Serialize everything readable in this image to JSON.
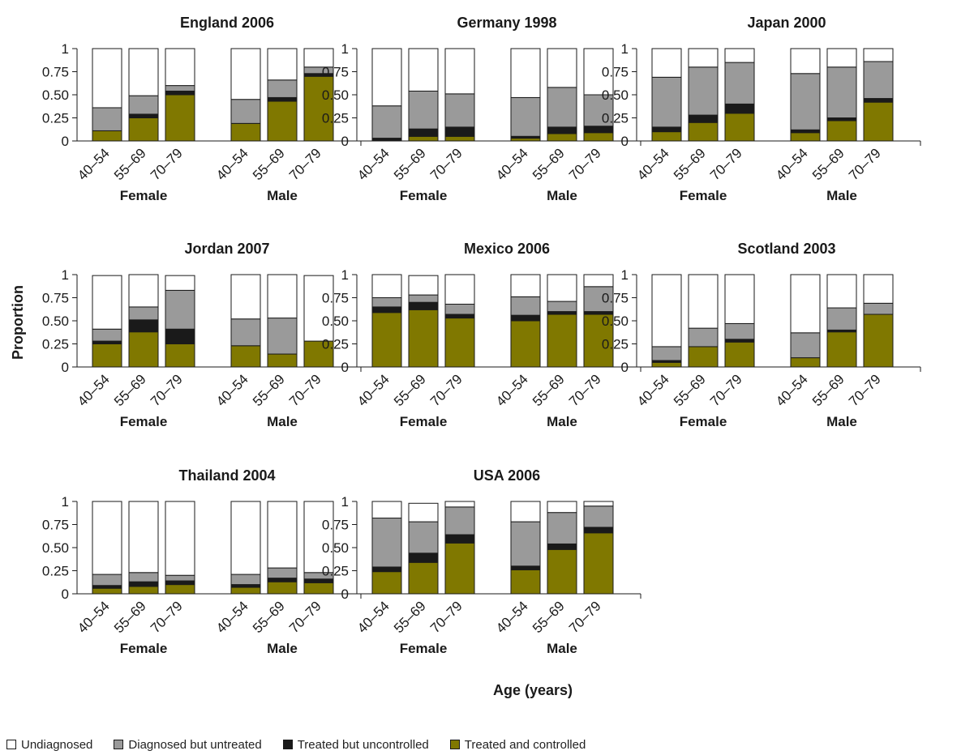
{
  "figure": {
    "y_axis_label": "Proportion",
    "x_axis_label": "Age (years)"
  },
  "legend": [
    {
      "label": "Undiagnosed",
      "color": "#ffffff"
    },
    {
      "label": "Diagnosed but untreated",
      "color": "#9a9a9a"
    },
    {
      "label": "Treated but uncontrolled",
      "color": "#1a1a1a"
    },
    {
      "label": "Treated and controlled",
      "color": "#807800"
    }
  ],
  "chart_data": [
    {
      "type": "bar",
      "stacked": true,
      "title": "England 2006",
      "groups": [
        "Female",
        "Male"
      ],
      "categories": [
        "40–54",
        "55–69",
        "70–79"
      ],
      "ylim": [
        0,
        1
      ],
      "yticks": [
        "0",
        "0.25",
        "0.50",
        "0.75",
        "1"
      ],
      "series": [
        {
          "name": "Treated and controlled",
          "values": [
            [
              0.11,
              0.25,
              0.5
            ],
            [
              0.19,
              0.43,
              0.7
            ]
          ]
        },
        {
          "name": "Treated but uncontrolled",
          "values": [
            [
              0.0,
              0.04,
              0.04
            ],
            [
              0.0,
              0.04,
              0.03
            ]
          ]
        },
        {
          "name": "Diagnosed but untreated",
          "values": [
            [
              0.25,
              0.2,
              0.06
            ],
            [
              0.26,
              0.19,
              0.07
            ]
          ]
        },
        {
          "name": "Undiagnosed",
          "values": [
            [
              0.64,
              0.51,
              0.4
            ],
            [
              0.55,
              0.34,
              0.2
            ]
          ]
        }
      ]
    },
    {
      "type": "bar",
      "stacked": true,
      "title": "Germany 1998",
      "groups": [
        "Female",
        "Male"
      ],
      "categories": [
        "40–54",
        "55–69",
        "70–79"
      ],
      "ylim": [
        0,
        1
      ],
      "yticks": [
        "0",
        "0.25",
        "0.50",
        "0.75",
        "1"
      ],
      "series": [
        {
          "name": "Treated and controlled",
          "values": [
            [
              0.0,
              0.05,
              0.05
            ],
            [
              0.03,
              0.08,
              0.09
            ]
          ]
        },
        {
          "name": "Treated but uncontrolled",
          "values": [
            [
              0.03,
              0.08,
              0.1
            ],
            [
              0.02,
              0.07,
              0.07
            ]
          ]
        },
        {
          "name": "Diagnosed but untreated",
          "values": [
            [
              0.35,
              0.41,
              0.36
            ],
            [
              0.42,
              0.43,
              0.34
            ]
          ]
        },
        {
          "name": "Undiagnosed",
          "values": [
            [
              0.62,
              0.46,
              0.49
            ],
            [
              0.53,
              0.42,
              0.5
            ]
          ]
        }
      ]
    },
    {
      "type": "bar",
      "stacked": true,
      "title": "Japan 2000",
      "groups": [
        "Female",
        "Male"
      ],
      "categories": [
        "40–54",
        "55–69",
        "70–79"
      ],
      "ylim": [
        0,
        1
      ],
      "yticks": [
        "0",
        "0.25",
        "0.50",
        "0.75",
        "1"
      ],
      "series": [
        {
          "name": "Treated and controlled",
          "values": [
            [
              0.1,
              0.2,
              0.3
            ],
            [
              0.09,
              0.22,
              0.42
            ]
          ]
        },
        {
          "name": "Treated but uncontrolled",
          "values": [
            [
              0.05,
              0.08,
              0.1
            ],
            [
              0.03,
              0.03,
              0.04
            ]
          ]
        },
        {
          "name": "Diagnosed but untreated",
          "values": [
            [
              0.54,
              0.52,
              0.45
            ],
            [
              0.61,
              0.55,
              0.4
            ]
          ]
        },
        {
          "name": "Undiagnosed",
          "values": [
            [
              0.31,
              0.2,
              0.15
            ],
            [
              0.27,
              0.2,
              0.14
            ]
          ]
        }
      ]
    },
    {
      "type": "bar",
      "stacked": true,
      "title": "Jordan 2007",
      "groups": [
        "Female",
        "Male"
      ],
      "categories": [
        "40–54",
        "55–69",
        "70–79"
      ],
      "ylim": [
        0,
        1
      ],
      "yticks": [
        "0",
        "0.25",
        "0.50",
        "0.75",
        "1"
      ],
      "series": [
        {
          "name": "Treated and controlled",
          "values": [
            [
              0.25,
              0.38,
              0.25
            ],
            [
              0.23,
              0.14,
              0.28
            ]
          ]
        },
        {
          "name": "Treated but uncontrolled",
          "values": [
            [
              0.03,
              0.13,
              0.16
            ],
            [
              0.0,
              0.0,
              0.0
            ]
          ]
        },
        {
          "name": "Diagnosed but untreated",
          "values": [
            [
              0.13,
              0.14,
              0.42
            ],
            [
              0.29,
              0.39,
              0.0
            ]
          ]
        },
        {
          "name": "Undiagnosed",
          "values": [
            [
              0.58,
              0.35,
              0.16
            ],
            [
              0.48,
              0.47,
              0.71
            ]
          ]
        }
      ]
    },
    {
      "type": "bar",
      "stacked": true,
      "title": "Mexico 2006",
      "groups": [
        "Female",
        "Male"
      ],
      "categories": [
        "40–54",
        "55–69",
        "70–79"
      ],
      "ylim": [
        0,
        1
      ],
      "yticks": [
        "0",
        "0.25",
        "0.50",
        "0.75",
        "1"
      ],
      "series": [
        {
          "name": "Treated and controlled",
          "values": [
            [
              0.59,
              0.62,
              0.53
            ],
            [
              0.5,
              0.57,
              0.57
            ]
          ]
        },
        {
          "name": "Treated but uncontrolled",
          "values": [
            [
              0.06,
              0.08,
              0.04
            ],
            [
              0.06,
              0.03,
              0.03
            ]
          ]
        },
        {
          "name": "Diagnosed but untreated",
          "values": [
            [
              0.1,
              0.08,
              0.11
            ],
            [
              0.2,
              0.11,
              0.27
            ]
          ]
        },
        {
          "name": "Undiagnosed",
          "values": [
            [
              0.25,
              0.21,
              0.32
            ],
            [
              0.24,
              0.29,
              0.13
            ]
          ]
        }
      ]
    },
    {
      "type": "bar",
      "stacked": true,
      "title": "Scotland 2003",
      "groups": [
        "Female",
        "Male"
      ],
      "categories": [
        "40–54",
        "55–69",
        "70–79"
      ],
      "ylim": [
        0,
        1
      ],
      "yticks": [
        "0",
        "0.25",
        "0.50",
        "0.75",
        "1"
      ],
      "series": [
        {
          "name": "Treated and controlled",
          "values": [
            [
              0.05,
              0.22,
              0.27
            ],
            [
              0.1,
              0.38,
              0.57
            ]
          ]
        },
        {
          "name": "Treated but uncontrolled",
          "values": [
            [
              0.02,
              0.0,
              0.03
            ],
            [
              0.0,
              0.02,
              0.0
            ]
          ]
        },
        {
          "name": "Diagnosed but untreated",
          "values": [
            [
              0.15,
              0.2,
              0.17
            ],
            [
              0.27,
              0.24,
              0.12
            ]
          ]
        },
        {
          "name": "Undiagnosed",
          "values": [
            [
              0.78,
              0.58,
              0.53
            ],
            [
              0.63,
              0.36,
              0.31
            ]
          ]
        }
      ]
    },
    {
      "type": "bar",
      "stacked": true,
      "title": "Thailand 2004",
      "groups": [
        "Female",
        "Male"
      ],
      "categories": [
        "40–54",
        "55–69",
        "70–79"
      ],
      "ylim": [
        0,
        1
      ],
      "yticks": [
        "0",
        "0.25",
        "0.50",
        "0.75",
        "1"
      ],
      "series": [
        {
          "name": "Treated and controlled",
          "values": [
            [
              0.06,
              0.08,
              0.1
            ],
            [
              0.07,
              0.13,
              0.12
            ]
          ]
        },
        {
          "name": "Treated but uncontrolled",
          "values": [
            [
              0.03,
              0.05,
              0.04
            ],
            [
              0.03,
              0.04,
              0.04
            ]
          ]
        },
        {
          "name": "Diagnosed but untreated",
          "values": [
            [
              0.12,
              0.1,
              0.06
            ],
            [
              0.11,
              0.11,
              0.07
            ]
          ]
        },
        {
          "name": "Undiagnosed",
          "values": [
            [
              0.79,
              0.77,
              0.8
            ],
            [
              0.79,
              0.72,
              0.77
            ]
          ]
        }
      ]
    },
    {
      "type": "bar",
      "stacked": true,
      "title": "USA 2006",
      "groups": [
        "Female",
        "Male"
      ],
      "categories": [
        "40–54",
        "55–69",
        "70–79"
      ],
      "ylim": [
        0,
        1
      ],
      "yticks": [
        "0",
        "0.25",
        "0.50",
        "0.75",
        "1"
      ],
      "series": [
        {
          "name": "Treated and controlled",
          "values": [
            [
              0.24,
              0.34,
              0.55
            ],
            [
              0.26,
              0.48,
              0.66
            ]
          ]
        },
        {
          "name": "Treated but uncontrolled",
          "values": [
            [
              0.05,
              0.1,
              0.09
            ],
            [
              0.04,
              0.06,
              0.06
            ]
          ]
        },
        {
          "name": "Diagnosed but untreated",
          "values": [
            [
              0.53,
              0.34,
              0.3
            ],
            [
              0.48,
              0.34,
              0.23
            ]
          ]
        },
        {
          "name": "Undiagnosed",
          "values": [
            [
              0.18,
              0.2,
              0.06
            ],
            [
              0.22,
              0.12,
              0.05
            ]
          ]
        }
      ]
    }
  ]
}
